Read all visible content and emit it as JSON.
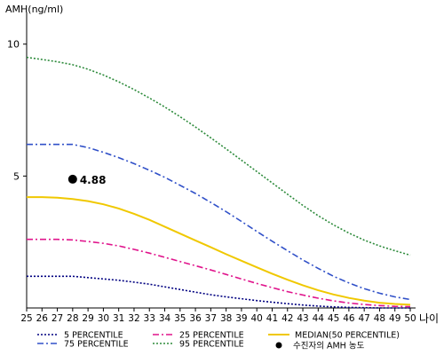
{
  "chart_data": {
    "type": "line",
    "ylabel": "AMH(ng/ml)",
    "xlabel": "나이",
    "x": [
      25,
      26,
      27,
      28,
      29,
      30,
      31,
      32,
      33,
      34,
      35,
      36,
      37,
      38,
      39,
      40,
      41,
      42,
      43,
      44,
      45,
      46,
      47,
      48,
      49,
      50
    ],
    "xlim": [
      25,
      50
    ],
    "ylim": [
      0,
      11
    ],
    "yticks": [
      5,
      10
    ],
    "grid": false,
    "legend_position": "bottom",
    "series": [
      {
        "name": "5 PERCENTILE",
        "color": "#000080",
        "dash": "dotted",
        "values": [
          1.2,
          1.2,
          1.2,
          1.2,
          1.15,
          1.1,
          1.05,
          0.98,
          0.9,
          0.8,
          0.7,
          0.6,
          0.5,
          0.42,
          0.35,
          0.28,
          0.22,
          0.16,
          0.11,
          0.07,
          0.04,
          0.02,
          0.01,
          0.0,
          0.0,
          0.0
        ]
      },
      {
        "name": "25 PERCENTILE",
        "color": "#e0148c",
        "dash": "dashdot",
        "values": [
          2.6,
          2.6,
          2.6,
          2.58,
          2.52,
          2.45,
          2.35,
          2.22,
          2.08,
          1.92,
          1.76,
          1.6,
          1.44,
          1.27,
          1.1,
          0.93,
          0.77,
          0.62,
          0.49,
          0.37,
          0.27,
          0.19,
          0.13,
          0.09,
          0.06,
          0.05
        ]
      },
      {
        "name": "MEDIAN(50 PERCENTILE)",
        "color": "#f0c800",
        "dash": "solid",
        "values": [
          4.2,
          4.2,
          4.18,
          4.13,
          4.05,
          3.93,
          3.77,
          3.57,
          3.34,
          3.08,
          2.82,
          2.56,
          2.3,
          2.04,
          1.79,
          1.54,
          1.3,
          1.07,
          0.86,
          0.67,
          0.51,
          0.38,
          0.28,
          0.2,
          0.15,
          0.12
        ]
      },
      {
        "name": "75 PERCENTILE",
        "color": "#3050c8",
        "dash": "dashdot",
        "values": [
          6.2,
          6.2,
          6.2,
          6.2,
          6.08,
          5.9,
          5.7,
          5.47,
          5.22,
          4.95,
          4.65,
          4.34,
          4.0,
          3.65,
          3.28,
          2.9,
          2.53,
          2.17,
          1.82,
          1.5,
          1.2,
          0.95,
          0.73,
          0.56,
          0.42,
          0.32
        ]
      },
      {
        "name": "95 PERCENTILE",
        "color": "#2e8b3c",
        "dash": "dotted",
        "values": [
          9.5,
          9.42,
          9.33,
          9.22,
          9.05,
          8.83,
          8.57,
          8.28,
          7.96,
          7.62,
          7.25,
          6.86,
          6.45,
          6.03,
          5.6,
          5.17,
          4.74,
          4.31,
          3.89,
          3.5,
          3.15,
          2.84,
          2.57,
          2.35,
          2.17,
          2.0
        ]
      }
    ],
    "point": {
      "name": "수진자의 AMH 농도",
      "x": 28,
      "y": 4.88,
      "label": "4.88",
      "color": "#000000"
    }
  }
}
